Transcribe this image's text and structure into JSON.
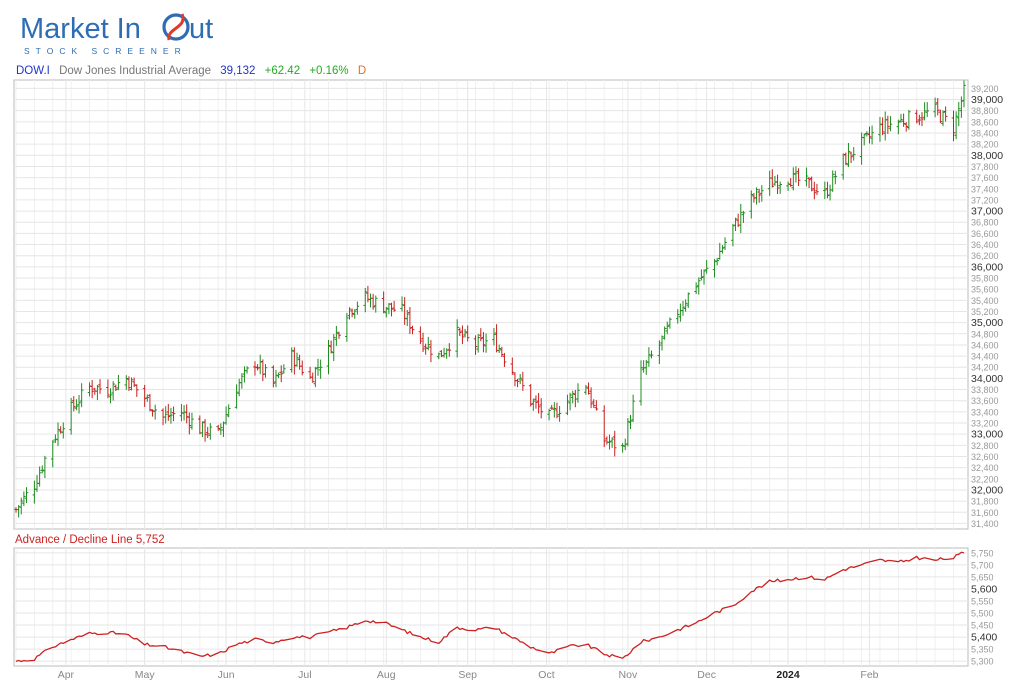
{
  "logo": {
    "text_left": "Market In",
    "text_right": "ut",
    "subtitle": "STOCK SCREENER"
  },
  "header": {
    "symbol": "DOW.I",
    "name": "Dow Jones Industrial Average",
    "price": "39,132",
    "change": "+62.42",
    "percent": "+0.16%",
    "period": "D"
  },
  "ad_header": {
    "label": "Advance / Decline Line",
    "value": "5,752"
  },
  "colors": {
    "up": "#1e8c1e",
    "down": "#c81e1e",
    "ad_line": "#cc2222",
    "grid": "#e6e6e6"
  },
  "chart_data": [
    {
      "type": "ohlc",
      "title": "Dow Jones Industrial Average",
      "x_tick_labels": [
        "Apr",
        "May",
        "Jun",
        "Jul",
        "Aug",
        "Sep",
        "Oct",
        "Nov",
        "Dec",
        "2024",
        "Feb"
      ],
      "y_ticks": [
        31400,
        31600,
        31800,
        32000,
        32200,
        32400,
        32600,
        32800,
        33000,
        33200,
        33400,
        33600,
        33800,
        34000,
        34200,
        34400,
        34600,
        34800,
        35000,
        35200,
        35400,
        35600,
        35800,
        36000,
        36200,
        36400,
        36600,
        36800,
        37000,
        37200,
        37400,
        37600,
        37800,
        38000,
        38200,
        38400,
        38600,
        38800,
        39000,
        39200
      ],
      "major_y_ticks": [
        32000,
        33000,
        34000,
        35000,
        36000,
        37000,
        38000,
        39000
      ],
      "ylim": [
        31300,
        39350
      ],
      "grid": true,
      "approx_closes": [
        {
          "date": "2023-03-13",
          "value": 31650
        },
        {
          "date": "2023-03-20",
          "value": 32100
        },
        {
          "date": "2023-03-27",
          "value": 32900
        },
        {
          "date": "2023-04-03",
          "value": 33450
        },
        {
          "date": "2023-04-10",
          "value": 33850
        },
        {
          "date": "2023-04-17",
          "value": 33800
        },
        {
          "date": "2023-04-24",
          "value": 34000
        },
        {
          "date": "2023-05-01",
          "value": 33650
        },
        {
          "date": "2023-05-08",
          "value": 33300
        },
        {
          "date": "2023-05-15",
          "value": 33400
        },
        {
          "date": "2023-05-22",
          "value": 33100
        },
        {
          "date": "2023-05-29",
          "value": 33000
        },
        {
          "date": "2023-06-05",
          "value": 33850
        },
        {
          "date": "2023-06-12",
          "value": 34300
        },
        {
          "date": "2023-06-19",
          "value": 33900
        },
        {
          "date": "2023-06-26",
          "value": 34400
        },
        {
          "date": "2023-07-03",
          "value": 34000
        },
        {
          "date": "2023-07-10",
          "value": 34500
        },
        {
          "date": "2023-07-17",
          "value": 35200
        },
        {
          "date": "2023-07-24",
          "value": 35450
        },
        {
          "date": "2023-07-31",
          "value": 35300
        },
        {
          "date": "2023-08-07",
          "value": 35200
        },
        {
          "date": "2023-08-14",
          "value": 34700
        },
        {
          "date": "2023-08-21",
          "value": 34400
        },
        {
          "date": "2023-08-28",
          "value": 34800
        },
        {
          "date": "2023-09-04",
          "value": 34600
        },
        {
          "date": "2023-09-11",
          "value": 34700
        },
        {
          "date": "2023-09-18",
          "value": 34150
        },
        {
          "date": "2023-09-25",
          "value": 33600
        },
        {
          "date": "2023-10-02",
          "value": 33300
        },
        {
          "date": "2023-10-09",
          "value": 33600
        },
        {
          "date": "2023-10-16",
          "value": 33900
        },
        {
          "date": "2023-10-23",
          "value": 32900
        },
        {
          "date": "2023-10-30",
          "value": 32750
        },
        {
          "date": "2023-11-06",
          "value": 34100
        },
        {
          "date": "2023-11-13",
          "value": 34600
        },
        {
          "date": "2023-11-20",
          "value": 35200
        },
        {
          "date": "2023-11-27",
          "value": 35700
        },
        {
          "date": "2023-12-04",
          "value": 36100
        },
        {
          "date": "2023-12-11",
          "value": 36700
        },
        {
          "date": "2023-12-18",
          "value": 37200
        },
        {
          "date": "2023-12-25",
          "value": 37500
        },
        {
          "date": "2024-01-01",
          "value": 37600
        },
        {
          "date": "2024-01-08",
          "value": 37500
        },
        {
          "date": "2024-01-15",
          "value": 37300
        },
        {
          "date": "2024-01-22",
          "value": 37900
        },
        {
          "date": "2024-01-29",
          "value": 38200
        },
        {
          "date": "2024-02-05",
          "value": 38500
        },
        {
          "date": "2024-02-12",
          "value": 38600
        },
        {
          "date": "2024-02-19",
          "value": 38700
        },
        {
          "date": "2024-02-26",
          "value": 38800
        },
        {
          "date": "2024-03-04",
          "value": 38500
        },
        {
          "date": "2024-03-08",
          "value": 39132
        }
      ]
    },
    {
      "type": "line",
      "title": "Advance / Decline Line",
      "x_tick_labels": [
        "Apr",
        "May",
        "Jun",
        "Jul",
        "Aug",
        "Sep",
        "Oct",
        "Nov",
        "Dec",
        "2024",
        "Feb"
      ],
      "y_ticks": [
        5300,
        5350,
        5400,
        5450,
        5500,
        5550,
        5600,
        5650,
        5700,
        5750
      ],
      "major_y_ticks": [
        5400,
        5600
      ],
      "ylim": [
        5280,
        5770
      ],
      "grid": true,
      "approx_values": [
        {
          "date": "2023-03-13",
          "value": 5300
        },
        {
          "date": "2023-03-20",
          "value": 5310
        },
        {
          "date": "2023-03-27",
          "value": 5360
        },
        {
          "date": "2023-04-03",
          "value": 5390
        },
        {
          "date": "2023-04-10",
          "value": 5415
        },
        {
          "date": "2023-04-17",
          "value": 5420
        },
        {
          "date": "2023-04-24",
          "value": 5410
        },
        {
          "date": "2023-05-01",
          "value": 5370
        },
        {
          "date": "2023-05-08",
          "value": 5360
        },
        {
          "date": "2023-05-15",
          "value": 5340
        },
        {
          "date": "2023-05-22",
          "value": 5320
        },
        {
          "date": "2023-05-29",
          "value": 5330
        },
        {
          "date": "2023-06-05",
          "value": 5370
        },
        {
          "date": "2023-06-12",
          "value": 5390
        },
        {
          "date": "2023-06-19",
          "value": 5380
        },
        {
          "date": "2023-06-26",
          "value": 5400
        },
        {
          "date": "2023-07-03",
          "value": 5400
        },
        {
          "date": "2023-07-10",
          "value": 5420
        },
        {
          "date": "2023-07-17",
          "value": 5440
        },
        {
          "date": "2023-07-24",
          "value": 5470
        },
        {
          "date": "2023-07-31",
          "value": 5460
        },
        {
          "date": "2023-08-07",
          "value": 5430
        },
        {
          "date": "2023-08-14",
          "value": 5400
        },
        {
          "date": "2023-08-21",
          "value": 5380
        },
        {
          "date": "2023-08-28",
          "value": 5440
        },
        {
          "date": "2023-09-04",
          "value": 5430
        },
        {
          "date": "2023-09-11",
          "value": 5440
        },
        {
          "date": "2023-09-18",
          "value": 5400
        },
        {
          "date": "2023-09-25",
          "value": 5360
        },
        {
          "date": "2023-10-02",
          "value": 5330
        },
        {
          "date": "2023-10-09",
          "value": 5360
        },
        {
          "date": "2023-10-16",
          "value": 5370
        },
        {
          "date": "2023-10-23",
          "value": 5330
        },
        {
          "date": "2023-10-30",
          "value": 5310
        },
        {
          "date": "2023-11-06",
          "value": 5380
        },
        {
          "date": "2023-11-13",
          "value": 5400
        },
        {
          "date": "2023-11-20",
          "value": 5430
        },
        {
          "date": "2023-11-27",
          "value": 5460
        },
        {
          "date": "2023-12-04",
          "value": 5500
        },
        {
          "date": "2023-12-11",
          "value": 5530
        },
        {
          "date": "2023-12-18",
          "value": 5590
        },
        {
          "date": "2023-12-25",
          "value": 5630
        },
        {
          "date": "2024-01-01",
          "value": 5640
        },
        {
          "date": "2024-01-08",
          "value": 5650
        },
        {
          "date": "2024-01-15",
          "value": 5640
        },
        {
          "date": "2024-01-22",
          "value": 5680
        },
        {
          "date": "2024-01-29",
          "value": 5700
        },
        {
          "date": "2024-02-05",
          "value": 5720
        },
        {
          "date": "2024-02-12",
          "value": 5710
        },
        {
          "date": "2024-02-19",
          "value": 5730
        },
        {
          "date": "2024-02-26",
          "value": 5720
        },
        {
          "date": "2024-03-04",
          "value": 5730
        },
        {
          "date": "2024-03-08",
          "value": 5752
        }
      ]
    }
  ]
}
